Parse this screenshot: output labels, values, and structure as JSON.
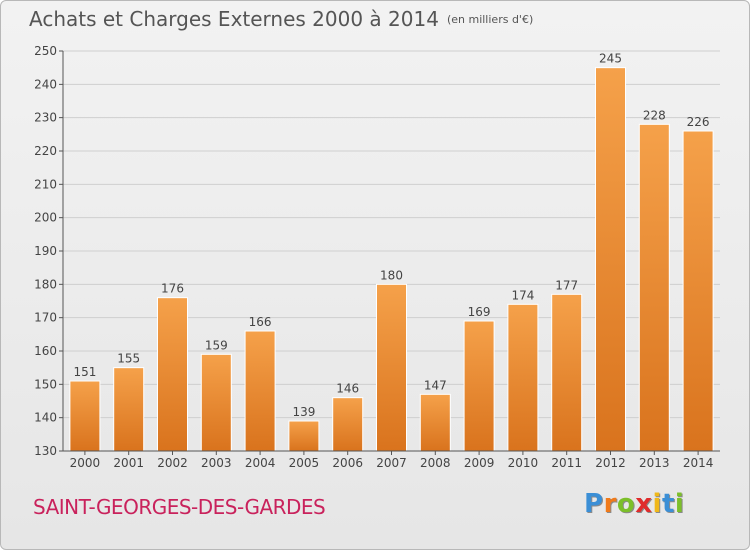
{
  "title": "Achats et Charges Externes 2000 à 2014",
  "unit": "(en milliers d'€)",
  "commune": "SAINT-GEORGES-DES-GARDES",
  "logo": {
    "letters": [
      "P",
      "r",
      "o",
      "x",
      "i",
      "t",
      "i"
    ],
    "colors": [
      "#3b8fd6",
      "#f07a1a",
      "#7cbf2a",
      "#e02c2c",
      "#f0b81a",
      "#3b8fd6",
      "#7cbf2a"
    ]
  },
  "colors": {
    "bar_top": "#f5a14a",
    "bar_bottom": "#d9731d",
    "grid": "#cfcfcf",
    "axis": "#555555",
    "title": "#555555",
    "commune": "#c9225c"
  },
  "chart_data": {
    "type": "bar",
    "title": "Achats et Charges Externes 2000 à 2014",
    "subtitle": "(en milliers d'€)",
    "xlabel": "",
    "ylabel": "",
    "categories": [
      "2000",
      "2001",
      "2002",
      "2003",
      "2004",
      "2005",
      "2006",
      "2007",
      "2008",
      "2009",
      "2010",
      "2011",
      "2012",
      "2013",
      "2014"
    ],
    "values": [
      151,
      155,
      176,
      159,
      166,
      139,
      146,
      180,
      147,
      169,
      174,
      177,
      245,
      228,
      226
    ],
    "ylim": [
      130,
      250
    ],
    "yticks": [
      130,
      140,
      150,
      160,
      170,
      180,
      190,
      200,
      210,
      220,
      230,
      240,
      250
    ],
    "grid": true,
    "data_labels": true
  }
}
